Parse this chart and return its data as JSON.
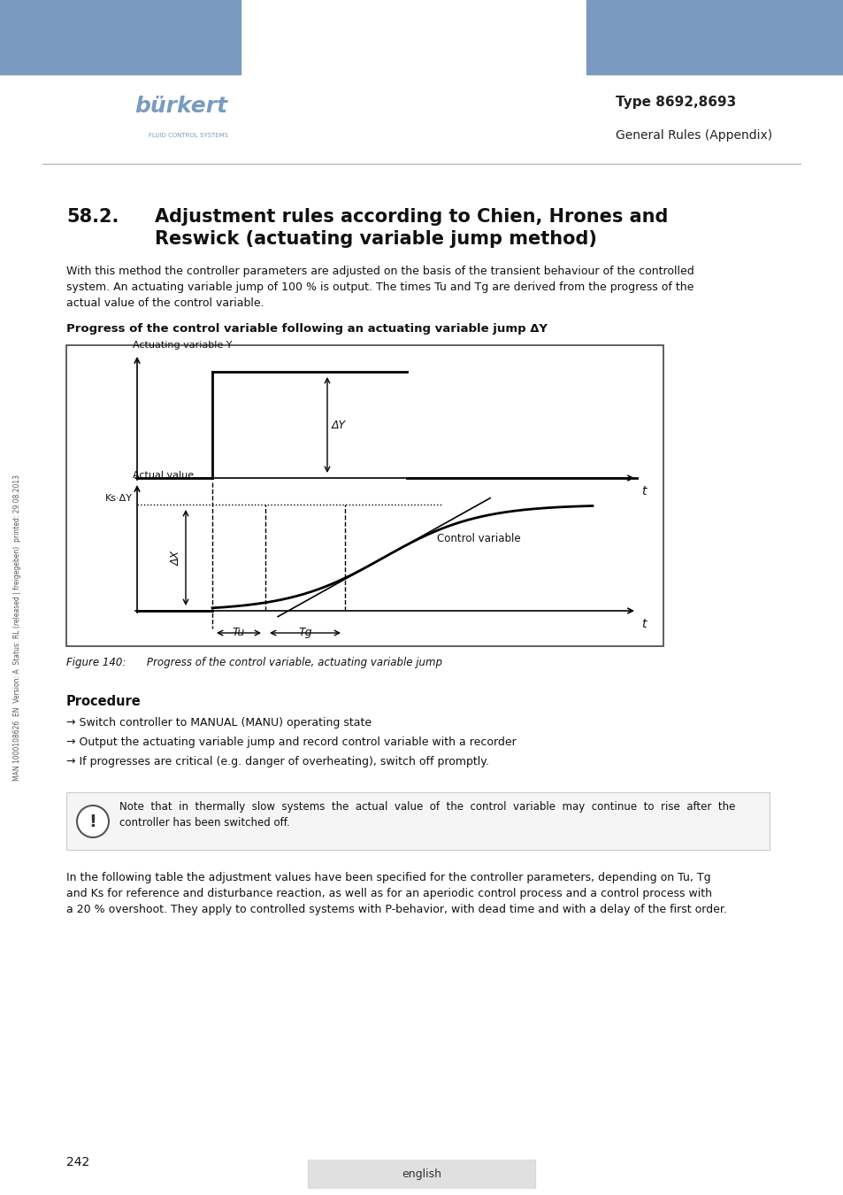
{
  "page_bg": "#ffffff",
  "header_blue": "#7a9bbf",
  "header_text_type": "Type 8692,8693",
  "header_text_sub": "General Rules (Appendix)",
  "section_title": "58.2.  Adjustment rules according to Chien, Hrones and\n      Reswick (actuating variable jump method)",
  "body_text1": "With this method the controller parameters are adjusted on the basis of the transient behaviour of the controlled\nsystem. An actuating variable jump of 100 % is output. The times Tu and Tg are derived from the progress of the\nactual value of the control variable.",
  "bold_label": "Progress of the control variable following an actuating variable jump ΔY",
  "figure_caption": "Figure 140:  Progress of the control variable, actuating variable jump",
  "procedure_title": "Procedure",
  "procedure_items": [
    "→ Switch controller to MANUAL (MANU) operating state",
    "→ Output the actuating variable jump and record control variable with a recorder",
    "→ If progresses are critical (e.g. danger of overheating), switch off promptly."
  ],
  "note_text": "Note  that  in  thermally  slow  systems  the  actual  value  of  the  control  variable  may  continue  to  rise  after  the\ncontroller has been switched off.",
  "body_text2": "In the following table the adjustment values have been specified for the controller parameters, depending on Tu, Tg\nand Ks for reference and disturbance reaction, as well as for an aperiodic control process and a control process with\na 20 % overshoot. They apply to controlled systems with P-behavior, with dead time and with a delay of the first order.",
  "page_number": "242",
  "footer_text": "english"
}
